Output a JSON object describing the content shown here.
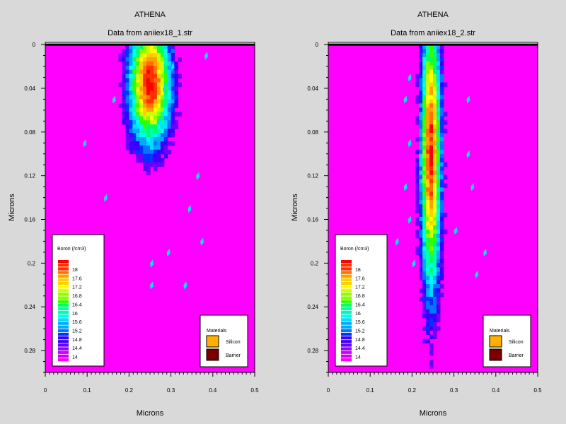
{
  "colors": {
    "background": "#d9d9d9",
    "plot_fill": "#ff00ff",
    "silicon": "#ffb000",
    "barrier": "#7a0000",
    "scale": [
      "#ff00ff",
      "#cc00ff",
      "#9a00ff",
      "#6a00ff",
      "#3a00ff",
      "#0033ff",
      "#0077ff",
      "#00aaff",
      "#00ddff",
      "#00ffee",
      "#00ffaa",
      "#00ff66",
      "#33ff00",
      "#88ff00",
      "#ccff00",
      "#ffff00",
      "#ffd000",
      "#ffa000",
      "#ff7000",
      "#ff3000",
      "#ff0000"
    ]
  },
  "chart_data": [
    {
      "type": "heatmap",
      "title": "ATHENA",
      "subtitle": "Data from aniiex18_1.str",
      "xlabel": "Microns",
      "ylabel": "Microns",
      "xlim": [
        0,
        0.5
      ],
      "ylim": [
        -0.002,
        0.3
      ],
      "y_inverted": true,
      "xticks": [
        "0",
        "0.1",
        "0.2",
        "0.3",
        "0.4",
        "0.5"
      ],
      "yticks": [
        "0",
        "0.04",
        "0.08",
        "0.12",
        "0.16",
        "0.2",
        "0.24",
        "0.28"
      ],
      "legend": {
        "title": "Boron (/cm3)",
        "levels": [
          "18",
          "17.6",
          "17.2",
          "16.8",
          "16.4",
          "16",
          "15.6",
          "15.2",
          "14.8",
          "14.4",
          "14"
        ]
      },
      "materials": {
        "title": "Materials",
        "items": [
          {
            "name": "Silicon",
            "color": "#ffb000"
          },
          {
            "name": "Barrier",
            "color": "#7a0000"
          }
        ]
      },
      "profile": {
        "center_x": 0.25,
        "peak_log10_conc": 18.4,
        "peak_depth": 0.035,
        "lateral_sigma": 0.035,
        "depth_sigma": 0.04,
        "tail_log10_conc": 16.2,
        "tail_decay": 0.055,
        "tail_lateral_sigma": 0.008,
        "background_log10_conc": 14
      },
      "noise_fragments": [
        [
          0.16,
          0.05
        ],
        [
          0.28,
          0.04
        ],
        [
          0.09,
          0.09
        ],
        [
          0.14,
          0.14
        ],
        [
          0.36,
          0.12
        ],
        [
          0.34,
          0.15
        ],
        [
          0.37,
          0.18
        ],
        [
          0.29,
          0.19
        ],
        [
          0.33,
          0.22
        ],
        [
          0.25,
          0.2
        ],
        [
          0.25,
          0.22
        ],
        [
          0.3,
          0.02
        ],
        [
          0.38,
          0.01
        ],
        [
          0.27,
          0.07
        ]
      ]
    },
    {
      "type": "heatmap",
      "title": "ATHENA",
      "subtitle": "Data from aniiex18_2.str",
      "xlabel": "Microns",
      "ylabel": "Microns",
      "xlim": [
        0,
        0.5
      ],
      "ylim": [
        -0.002,
        0.3
      ],
      "y_inverted": true,
      "xticks": [
        "0",
        "0.1",
        "0.2",
        "0.3",
        "0.4",
        "0.5"
      ],
      "yticks": [
        "0",
        "0.04",
        "0.08",
        "0.12",
        "0.16",
        "0.2",
        "0.24",
        "0.28"
      ],
      "legend": {
        "title": "Boron (/cm3)",
        "levels": [
          "18",
          "17.6",
          "17.2",
          "16.8",
          "16.4",
          "16",
          "15.6",
          "15.2",
          "14.8",
          "14.4",
          "14"
        ]
      },
      "materials": {
        "title": "Materials",
        "items": [
          {
            "name": "Silicon",
            "color": "#ffb000"
          },
          {
            "name": "Barrier",
            "color": "#7a0000"
          }
        ]
      },
      "profile": {
        "center_x": 0.245,
        "peak_log10_conc": 18.3,
        "peak_depth": 0.1,
        "lateral_sigma": 0.017,
        "depth_sigma": 0.09,
        "tail_log10_conc": 17.2,
        "tail_decay": 0.1,
        "tail_lateral_sigma": 0.007,
        "background_log10_conc": 14
      },
      "noise_fragments": [
        [
          0.19,
          0.03
        ],
        [
          0.18,
          0.05
        ],
        [
          0.33,
          0.05
        ],
        [
          0.19,
          0.09
        ],
        [
          0.33,
          0.1
        ],
        [
          0.18,
          0.13
        ],
        [
          0.34,
          0.13
        ],
        [
          0.19,
          0.16
        ],
        [
          0.3,
          0.17
        ],
        [
          0.2,
          0.2
        ],
        [
          0.35,
          0.21
        ],
        [
          0.16,
          0.18
        ],
        [
          0.37,
          0.19
        ]
      ]
    }
  ]
}
